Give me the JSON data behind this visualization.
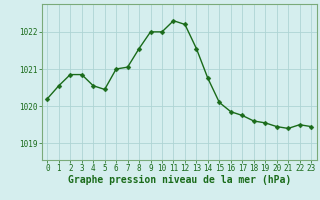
{
  "x": [
    0,
    1,
    2,
    3,
    4,
    5,
    6,
    7,
    8,
    9,
    10,
    11,
    12,
    13,
    14,
    15,
    16,
    17,
    18,
    19,
    20,
    21,
    22,
    23
  ],
  "y": [
    1020.2,
    1020.55,
    1020.85,
    1020.85,
    1020.55,
    1020.45,
    1021.0,
    1021.05,
    1021.55,
    1022.0,
    1022.0,
    1022.3,
    1022.2,
    1021.55,
    1020.75,
    1020.1,
    1019.85,
    1019.75,
    1019.6,
    1019.55,
    1019.45,
    1019.4,
    1019.5,
    1019.45
  ],
  "line_color": "#1a6b1a",
  "marker": "D",
  "marker_size": 2.5,
  "background_color": "#d5eeee",
  "grid_color": "#aed4d4",
  "xlabel": "Graphe pression niveau de la mer (hPa)",
  "xlabel_fontsize": 7,
  "ylabel_ticks": [
    1019,
    1020,
    1021,
    1022
  ],
  "xlim": [
    -0.5,
    23.5
  ],
  "ylim": [
    1018.55,
    1022.75
  ],
  "xtick_labels": [
    "0",
    "1",
    "2",
    "3",
    "4",
    "5",
    "6",
    "7",
    "8",
    "9",
    "10",
    "11",
    "12",
    "13",
    "14",
    "15",
    "16",
    "17",
    "18",
    "19",
    "20",
    "21",
    "22",
    "23"
  ],
  "tick_color": "#1a6b1a",
  "tick_fontsize": 5.5,
  "linewidth": 1.0
}
